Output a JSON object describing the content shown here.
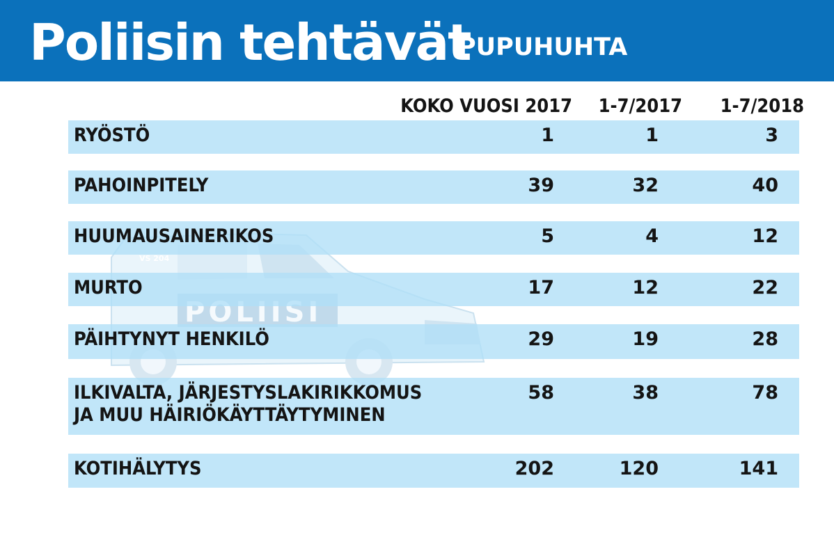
{
  "header": {
    "title": "Poliisin tehtävät",
    "subtitle": "PUPUHUHTA",
    "background_color": "#0b71bb"
  },
  "chart_data": {
    "type": "table",
    "columns": [
      "KOKO VUOSI 2017",
      "1-7/2017",
      "1-7/2018"
    ],
    "rows": [
      {
        "label": [
          "RYÖSTÖ"
        ],
        "values": [
          "1",
          "1",
          "3"
        ]
      },
      {
        "label": [
          "PAHOINPITELY"
        ],
        "values": [
          "39",
          "32",
          "40"
        ]
      },
      {
        "label": [
          "HUUMAUSAINERIKOS"
        ],
        "values": [
          "5",
          "4",
          "12"
        ]
      },
      {
        "label": [
          "MURTO"
        ],
        "values": [
          "17",
          "12",
          "22"
        ]
      },
      {
        "label": [
          "PÄIHTYNYT HENKILÖ"
        ],
        "values": [
          "29",
          "19",
          "28"
        ]
      },
      {
        "label": [
          "ILKIVALTA, JÄRJESTYSLAKIRIKKOMUS",
          "JA MUU HÄIRIÖKÄYTTÄYTYMINEN"
        ],
        "values": [
          "58",
          "38",
          "78"
        ]
      },
      {
        "label": [
          "KOTIHÄLYTYS"
        ],
        "values": [
          "202",
          "120",
          "141"
        ]
      }
    ],
    "row_color": "#b0dff7"
  },
  "background_image": {
    "icon": "police-van-icon",
    "van_text": "POLIISI",
    "van_number": "VS 204"
  }
}
